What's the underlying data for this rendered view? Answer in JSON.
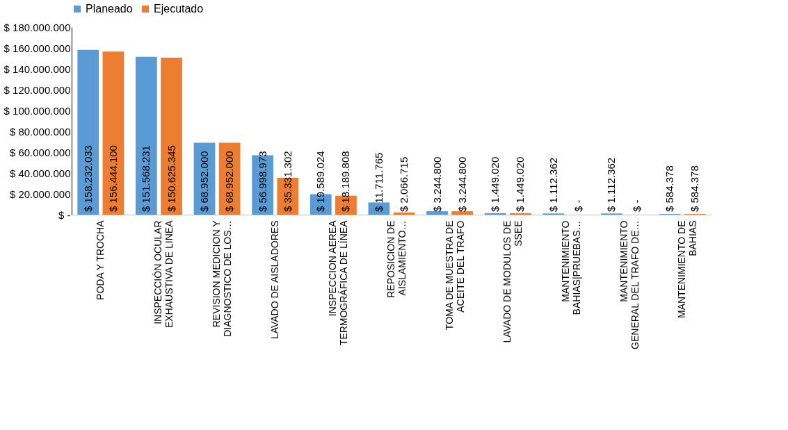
{
  "chart_data": {
    "type": "bar",
    "categories": [
      "PODA Y TROCHA",
      "INSPECCIÓN OCULAR\nEXHAUSTIVA DE LINEA",
      "REVISION MEDICION Y\nDIAGNOSTICO DE LOS…",
      "LAVADO DE AISLADORES",
      "INSPECCION AEREA\nTERMOGRÁFICA DE LÍNEA",
      "REPOSICION DE\nAISLAMIENTO…",
      "TOMA DE MUESTRA DE\nACEITE DEL TRAFO",
      "LAVADO DE MODULOS DE\nSSEE",
      "MANTENIMIENTO\nBAHIAS|PRUEBAS…",
      "MANTENIMIENTO\nGENERAL DEL TRAFO DE…",
      "MANTENIMIENTO DE\nBAHIAS"
    ],
    "series": [
      {
        "name": "Planeado",
        "color": "#5b9bd5",
        "values": [
          158232033,
          151568231,
          68952000,
          56998973,
          19589024,
          11711765,
          3244800,
          1449020,
          1112362,
          1112362,
          584378
        ],
        "value_labels": [
          "$ 158.232.033",
          "$ 151.568.231",
          "$ 68.952.000",
          "$ 56.998.973",
          "$ 19.589.024",
          "$ 11.711.765",
          "$ 3.244.800",
          "$ 1.449.020",
          "$ 1.112.362",
          "$ 1.112.362",
          "$ 584.378"
        ]
      },
      {
        "name": "Ejecutado",
        "color": "#ed7d31",
        "values": [
          156444100,
          150625345,
          68952000,
          35331302,
          18189808,
          2066715,
          3244800,
          1449020,
          0,
          0,
          584378
        ],
        "value_labels": [
          "$ 156.444.100",
          "$ 150.625.345",
          "$ 68.952.000",
          "$ 35.331.302",
          "$ 18.189.808",
          "$ 2.066.715",
          "$ 3.244.800",
          "$ 1.449.020",
          "$ -",
          "$ -",
          "$ 584.378"
        ]
      }
    ],
    "ylim": [
      0,
      180000000
    ],
    "yticks": [
      {
        "value": 0,
        "label": "$ -"
      },
      {
        "value": 20000000,
        "label": "$ 20.000.000"
      },
      {
        "value": 40000000,
        "label": "$ 40.000.000"
      },
      {
        "value": 60000000,
        "label": "$ 60.000.000"
      },
      {
        "value": 80000000,
        "label": "$ 80.000.000"
      },
      {
        "value": 100000000,
        "label": "$ 100.000.000"
      },
      {
        "value": 120000000,
        "label": "$ 120.000.000"
      },
      {
        "value": 140000000,
        "label": "$ 140.000.000"
      },
      {
        "value": 160000000,
        "label": "$ 160.000.000"
      },
      {
        "value": 180000000,
        "label": "$ 180.000.000"
      }
    ],
    "grid": false,
    "legend": "top"
  }
}
